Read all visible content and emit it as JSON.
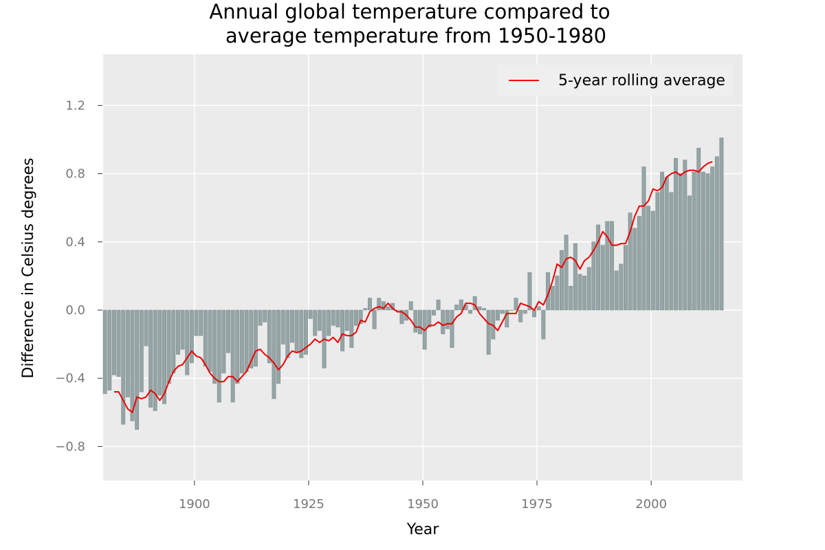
{
  "chart_data": {
    "type": "bar",
    "title_line1": "Annual global temperature compared to",
    "title_line2": "average temperature from 1950-1980",
    "xlabel": "Year",
    "ylabel": "Difference in Celsius degrees",
    "xlim": [
      1880,
      2020
    ],
    "ylim": [
      -1.0,
      1.5
    ],
    "x_ticks": [
      1900,
      1925,
      1950,
      1975,
      2000
    ],
    "x_tick_labels": [
      "1900",
      "1925",
      "1950",
      "1975",
      "2000"
    ],
    "y_ticks": [
      -0.8,
      -0.4,
      0.0,
      0.4,
      0.8,
      1.2
    ],
    "y_tick_labels": [
      "−0.8",
      "−0.4",
      "0.0",
      "0.4",
      "0.8",
      "1.2"
    ],
    "grid": true,
    "legend_position": "top-right",
    "legend_label": "5-year rolling average",
    "series": [
      {
        "name": "annual",
        "kind": "bar",
        "x_start": 1880,
        "values": [
          -0.49,
          -0.47,
          -0.38,
          -0.39,
          -0.67,
          -0.51,
          -0.65,
          -0.7,
          -0.48,
          -0.21,
          -0.57,
          -0.59,
          -0.5,
          -0.55,
          -0.43,
          -0.37,
          -0.26,
          -0.23,
          -0.38,
          -0.31,
          -0.15,
          -0.15,
          -0.33,
          -0.36,
          -0.43,
          -0.54,
          -0.37,
          -0.25,
          -0.54,
          -0.43,
          -0.37,
          -0.36,
          -0.34,
          -0.33,
          -0.09,
          -0.07,
          -0.31,
          -0.52,
          -0.43,
          -0.2,
          -0.28,
          -0.19,
          -0.25,
          -0.28,
          -0.26,
          -0.05,
          -0.15,
          -0.12,
          -0.34,
          -0.15,
          -0.09,
          -0.1,
          -0.24,
          -0.12,
          -0.22,
          -0.09,
          -0.08,
          0.01,
          0.07,
          -0.11,
          0.07,
          0.05,
          0.02,
          0.04,
          0.0,
          -0.08,
          -0.06,
          0.05,
          -0.13,
          -0.14,
          -0.23,
          -0.1,
          -0.03,
          0.06,
          -0.14,
          -0.11,
          -0.22,
          0.03,
          0.06,
          0.03,
          -0.02,
          0.08,
          0.02,
          0.01,
          -0.26,
          -0.17,
          -0.06,
          -0.02,
          -0.1,
          0.0,
          0.07,
          -0.07,
          -0.02,
          0.22,
          -0.04,
          0.02,
          -0.17,
          0.22,
          0.14,
          0.2,
          0.35,
          0.44,
          0.14,
          0.39,
          0.21,
          0.2,
          0.25,
          0.4,
          0.5,
          0.38,
          0.52,
          0.52,
          0.23,
          0.27,
          0.38,
          0.57,
          0.48,
          0.55,
          0.84,
          0.61,
          0.58,
          0.69,
          0.81,
          0.78,
          0.69,
          0.89,
          0.8,
          0.88,
          0.67,
          0.81,
          0.95,
          0.81,
          0.8,
          0.84,
          0.9,
          1.01
        ],
        "color": "#95a5a6"
      },
      {
        "name": "5-year rolling average",
        "kind": "line",
        "x_start": 1882,
        "values": [
          -0.48,
          -0.48,
          -0.53,
          -0.58,
          -0.6,
          -0.51,
          -0.52,
          -0.51,
          -0.47,
          -0.49,
          -0.53,
          -0.49,
          -0.42,
          -0.36,
          -0.33,
          -0.32,
          -0.28,
          -0.24,
          -0.27,
          -0.28,
          -0.32,
          -0.37,
          -0.4,
          -0.42,
          -0.42,
          -0.39,
          -0.39,
          -0.42,
          -0.39,
          -0.36,
          -0.3,
          -0.24,
          -0.23,
          -0.26,
          -0.28,
          -0.31,
          -0.35,
          -0.32,
          -0.27,
          -0.24,
          -0.25,
          -0.24,
          -0.22,
          -0.2,
          -0.17,
          -0.19,
          -0.17,
          -0.18,
          -0.16,
          -0.19,
          -0.14,
          -0.15,
          -0.15,
          -0.13,
          -0.06,
          -0.07,
          -0.01,
          0.01,
          0.02,
          0.01,
          0.04,
          0.01,
          -0.01,
          -0.01,
          -0.03,
          -0.06,
          -0.1,
          -0.1,
          -0.12,
          -0.09,
          -0.09,
          -0.07,
          -0.09,
          -0.08,
          -0.08,
          -0.04,
          -0.02,
          0.04,
          0.04,
          0.03,
          -0.02,
          -0.05,
          -0.08,
          -0.09,
          -0.12,
          -0.07,
          -0.02,
          -0.02,
          -0.02,
          0.04,
          0.03,
          0.02,
          0.0,
          0.05,
          0.03,
          0.09,
          0.17,
          0.27,
          0.25,
          0.3,
          0.31,
          0.29,
          0.24,
          0.29,
          0.31,
          0.35,
          0.4,
          0.46,
          0.43,
          0.38,
          0.38,
          0.39,
          0.39,
          0.46,
          0.55,
          0.61,
          0.61,
          0.64,
          0.71,
          0.7,
          0.72,
          0.78,
          0.8,
          0.81,
          0.79,
          0.81,
          0.82,
          0.82,
          0.81,
          0.84,
          0.86,
          0.87
        ],
        "color": "#ee0000"
      }
    ]
  }
}
